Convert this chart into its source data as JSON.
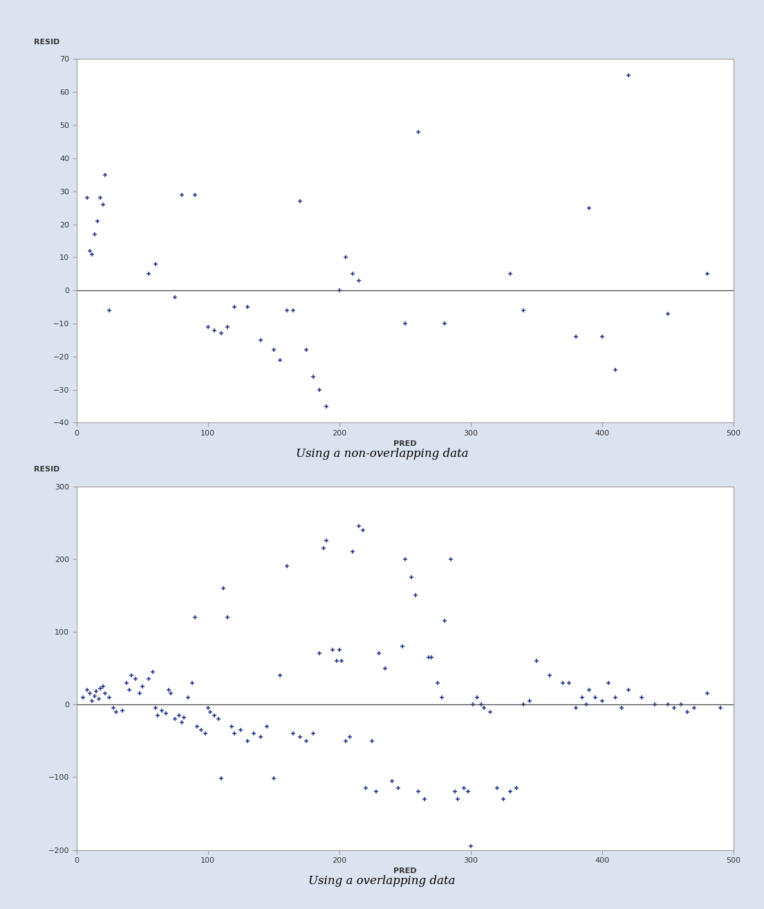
{
  "plot1": {
    "ylabel": "RESID",
    "xlabel": "PRED",
    "caption": "Using a non-overlapping data",
    "xlim": [
      0,
      500
    ],
    "ylim": [
      -40,
      70
    ],
    "yticks": [
      -40,
      -30,
      -20,
      -10,
      0,
      10,
      20,
      30,
      40,
      50,
      60,
      70
    ],
    "xticks": [
      0,
      100,
      200,
      300,
      400,
      500
    ],
    "pred": [
      8,
      10,
      12,
      14,
      16,
      18,
      20,
      22,
      25,
      55,
      60,
      75,
      80,
      90,
      100,
      105,
      110,
      115,
      120,
      130,
      140,
      150,
      155,
      160,
      165,
      170,
      175,
      180,
      185,
      190,
      200,
      205,
      210,
      215,
      250,
      260,
      280,
      330,
      340,
      380,
      390,
      400,
      410,
      420,
      450,
      480
    ],
    "resid": [
      28,
      12,
      11,
      17,
      21,
      28,
      26,
      35,
      -6,
      5,
      8,
      -2,
      29,
      29,
      -11,
      -12,
      -13,
      -11,
      -5,
      -5,
      -15,
      -18,
      -21,
      -6,
      -6,
      27,
      -18,
      -26,
      -30,
      -35,
      0,
      10,
      5,
      3,
      -10,
      48,
      -10,
      5,
      -6,
      -14,
      25,
      -14,
      -24,
      65,
      -7,
      5
    ]
  },
  "plot2": {
    "ylabel": "RESID",
    "xlabel": "PRED",
    "caption": "Using a overlapping data",
    "xlim": [
      0,
      500
    ],
    "ylim": [
      -200,
      300
    ],
    "yticks": [
      -200,
      -100,
      0,
      100,
      200,
      300
    ],
    "xticks": [
      0,
      100,
      200,
      300,
      400,
      500
    ],
    "pred": [
      5,
      8,
      10,
      12,
      14,
      15,
      17,
      18,
      20,
      22,
      25,
      28,
      30,
      35,
      38,
      40,
      42,
      45,
      48,
      50,
      55,
      58,
      60,
      62,
      65,
      68,
      70,
      72,
      75,
      78,
      80,
      82,
      85,
      88,
      90,
      92,
      95,
      98,
      100,
      102,
      105,
      108,
      110,
      112,
      115,
      118,
      120,
      125,
      130,
      135,
      140,
      145,
      150,
      155,
      160,
      165,
      170,
      175,
      180,
      185,
      188,
      190,
      195,
      198,
      200,
      202,
      205,
      208,
      210,
      215,
      218,
      220,
      225,
      228,
      230,
      235,
      240,
      245,
      248,
      250,
      255,
      258,
      260,
      265,
      268,
      270,
      275,
      278,
      280,
      285,
      288,
      290,
      295,
      298,
      300,
      302,
      305,
      308,
      310,
      315,
      320,
      325,
      330,
      335,
      340,
      345,
      350,
      360,
      370,
      375,
      380,
      385,
      388,
      390,
      395,
      400,
      405,
      410,
      415,
      420,
      430,
      440,
      450,
      455,
      460,
      465,
      470,
      480,
      490
    ],
    "resid": [
      10,
      20,
      15,
      5,
      12,
      18,
      8,
      22,
      25,
      15,
      10,
      -5,
      -10,
      -8,
      30,
      20,
      40,
      35,
      15,
      25,
      35,
      45,
      -5,
      -15,
      -8,
      -12,
      20,
      15,
      -20,
      -15,
      -25,
      -18,
      10,
      30,
      120,
      -30,
      -35,
      -40,
      -5,
      -10,
      -15,
      -20,
      -102,
      160,
      120,
      -30,
      -40,
      -35,
      -50,
      -40,
      -45,
      -30,
      -102,
      40,
      190,
      -40,
      -45,
      -50,
      -40,
      70,
      215,
      225,
      75,
      60,
      75,
      60,
      -50,
      -45,
      210,
      245,
      240,
      -115,
      -50,
      -120,
      70,
      50,
      -105,
      -115,
      80,
      200,
      175,
      150,
      -120,
      -130,
      65,
      65,
      30,
      10,
      115,
      200,
      -120,
      -130,
      -115,
      -120,
      -195,
      0,
      10,
      0,
      -5,
      -10,
      -115,
      -130,
      -120,
      -115,
      0,
      5,
      60,
      40,
      30,
      30,
      -5,
      10,
      0,
      20,
      10,
      5,
      30,
      10,
      -5,
      20,
      10,
      0,
      0,
      -5,
      0,
      -10,
      -5,
      15,
      -5
    ]
  },
  "marker_color": "#2b3990",
  "marker_size": 5,
  "marker_lw": 1.2,
  "hline_color": "#444444",
  "hline_lw": 0.9,
  "bg_color": "#dce3f0",
  "plot_bg_color": "#ffffff",
  "border_color": "#999999",
  "tick_color": "#333333",
  "label_color": "#333333",
  "caption_color": "#000000",
  "caption_fontsize": 12,
  "ylabel_fontsize": 8,
  "xlabel_fontsize": 8,
  "tick_fontsize": 8,
  "spine_lw": 0.8
}
